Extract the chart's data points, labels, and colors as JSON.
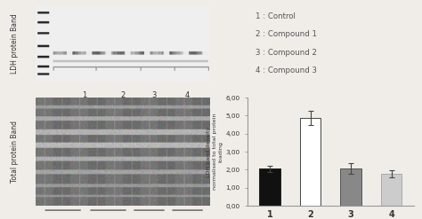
{
  "bar_values": [
    2.05,
    4.88,
    2.08,
    1.78
  ],
  "bar_errors": [
    0.15,
    0.38,
    0.28,
    0.18
  ],
  "bar_colors": [
    "#111111",
    "#ffffff",
    "#888888",
    "#cccccc"
  ],
  "bar_edge_colors": [
    "#222222",
    "#444444",
    "#555555",
    "#aaaaaa"
  ],
  "bar_labels": [
    "1",
    "2",
    "3",
    "4"
  ],
  "ylabel": "LDH band density\nnormalised to total protein\nloading",
  "ylim": [
    0,
    6.0
  ],
  "yticks": [
    0.0,
    1.0,
    2.0,
    3.0,
    4.0,
    5.0,
    6.0
  ],
  "ytick_labels": [
    "0,00",
    "1,00",
    "2,00",
    "3,00",
    "4,00",
    "5,00",
    "6,00"
  ],
  "legend_lines": [
    "1 : Control",
    "2 : Compound 1",
    "3 : Compound 2",
    "4 : Compound 3"
  ],
  "background_color": "#f0ede8"
}
